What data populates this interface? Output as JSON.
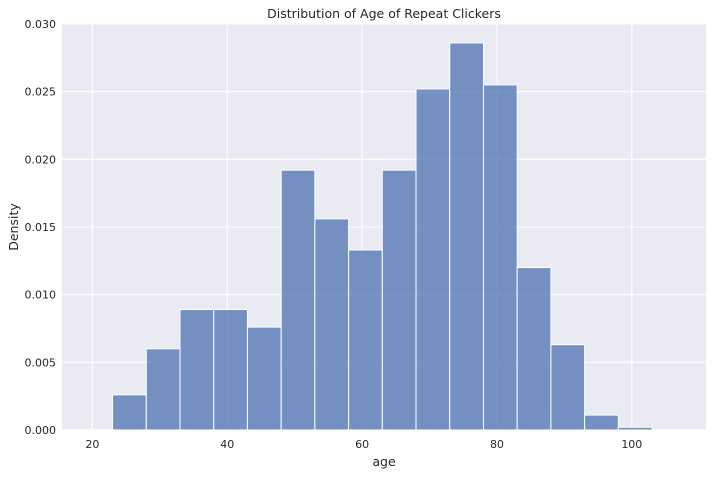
{
  "chart_data": {
    "type": "bar",
    "title": "Distribution of Age of Repeat Clickers",
    "xlabel": "age",
    "ylabel": "Density",
    "xlim": [
      15.5,
      111
    ],
    "ylim": [
      0,
      0.03
    ],
    "xticks": [
      20,
      40,
      60,
      80,
      100
    ],
    "yticks": [
      0.0,
      0.005,
      0.01,
      0.015,
      0.02,
      0.025,
      0.03
    ],
    "ytick_labels": [
      "0.000",
      "0.005",
      "0.010",
      "0.015",
      "0.020",
      "0.025",
      "0.030"
    ],
    "grid": true,
    "bins": [
      {
        "start": 23,
        "end": 28,
        "value": 0.0026
      },
      {
        "start": 28,
        "end": 33,
        "value": 0.006
      },
      {
        "start": 33,
        "end": 38,
        "value": 0.0089
      },
      {
        "start": 38,
        "end": 43,
        "value": 0.0089
      },
      {
        "start": 43,
        "end": 48,
        "value": 0.0076
      },
      {
        "start": 48,
        "end": 53,
        "value": 0.0192
      },
      {
        "start": 53,
        "end": 58,
        "value": 0.0156
      },
      {
        "start": 58,
        "end": 63,
        "value": 0.0133
      },
      {
        "start": 63,
        "end": 68,
        "value": 0.0192
      },
      {
        "start": 68,
        "end": 73,
        "value": 0.0252
      },
      {
        "start": 73,
        "end": 78,
        "value": 0.0286
      },
      {
        "start": 78,
        "end": 83,
        "value": 0.0255
      },
      {
        "start": 83,
        "end": 88,
        "value": 0.012
      },
      {
        "start": 88,
        "end": 93,
        "value": 0.0063
      },
      {
        "start": 93,
        "end": 98,
        "value": 0.0011
      },
      {
        "start": 98,
        "end": 103,
        "value": 0.0002
      }
    ],
    "colors": {
      "bar": "#4c72b0",
      "plot_background": "#eaeaf2",
      "grid": "#ffffff"
    }
  }
}
